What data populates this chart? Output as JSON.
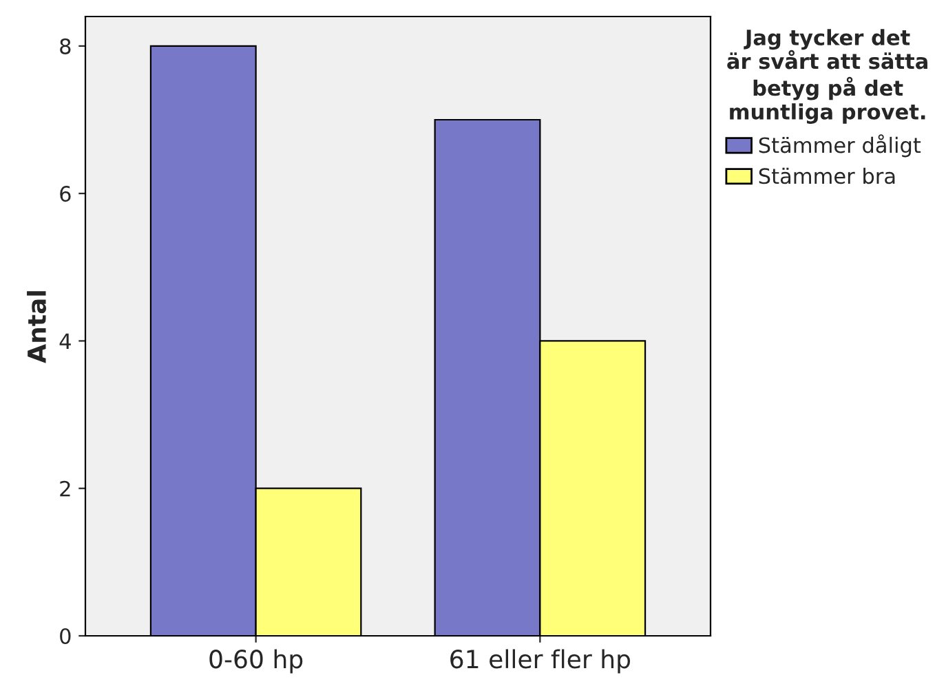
{
  "chart_data": {
    "type": "bar",
    "ylabel": "Antal",
    "legend_title": "Jag tycker det\när svårt att sätta\nbetyg på det\nmuntliga provet.",
    "categories": [
      "0-60 hp",
      "61 eller fler hp"
    ],
    "series": [
      {
        "name": "Stämmer dåligt",
        "color": "#7878c8",
        "values": [
          8,
          7
        ]
      },
      {
        "name": "Stämmer bra",
        "color": "#ffff78",
        "values": [
          2,
          4
        ]
      }
    ],
    "ylim": [
      0,
      8.4
    ],
    "yticks": [
      0,
      2,
      4,
      6,
      8
    ],
    "grid": false,
    "legend": "right"
  }
}
